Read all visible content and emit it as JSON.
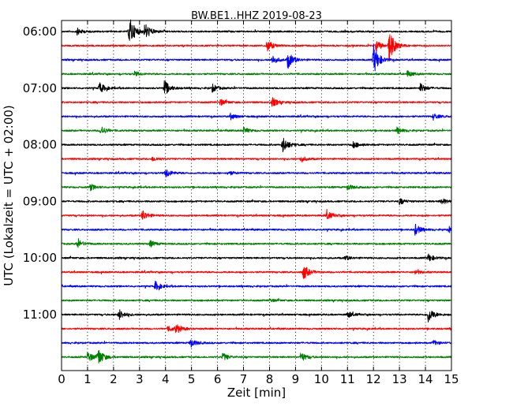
{
  "chart_data": {
    "type": "line",
    "title": "BW.BE1..HHZ 2019-08-23",
    "xlabel": "Zeit  [min]",
    "ylabel": "UTC (Lokalzeit = UTC + 02:00)",
    "xlim": [
      0,
      15
    ],
    "x_ticks": [
      "0",
      "1",
      "2",
      "3",
      "4",
      "5",
      "6",
      "7",
      "8",
      "9",
      "10",
      "11",
      "12",
      "13",
      "14",
      "15"
    ],
    "y_ticks": [
      {
        "label": "06:00",
        "row": 0
      },
      {
        "label": "07:00",
        "row": 4
      },
      {
        "label": "08:00",
        "row": 8
      },
      {
        "label": "09:00",
        "row": 12
      },
      {
        "label": "10:00",
        "row": 16
      },
      {
        "label": "11:00",
        "row": 20
      }
    ],
    "grid": {
      "x": true,
      "y": false,
      "style": "dotted"
    },
    "colors": [
      "#000000",
      "#ff0000",
      "#0000ff",
      "#008000"
    ],
    "row_interval_minutes": 15,
    "rows": [
      {
        "start": "06:00",
        "color": "#000000",
        "events": [
          {
            "t": 2.6,
            "amp": 1.0
          },
          {
            "t": 3.2,
            "amp": 0.55
          },
          {
            "t": 0.6,
            "amp": 0.2
          }
        ]
      },
      {
        "start": "06:15",
        "color": "#ff0000",
        "events": [
          {
            "t": 12.6,
            "amp": 1.0
          },
          {
            "t": 7.9,
            "amp": 0.4
          },
          {
            "t": 12.1,
            "amp": 0.35
          }
        ]
      },
      {
        "start": "06:30",
        "color": "#0000ff",
        "events": [
          {
            "t": 12.0,
            "amp": 1.0
          },
          {
            "t": 8.7,
            "amp": 0.55
          },
          {
            "t": 8.1,
            "amp": 0.3
          }
        ]
      },
      {
        "start": "06:45",
        "color": "#008000",
        "events": [
          {
            "t": 13.3,
            "amp": 0.2
          },
          {
            "t": 2.8,
            "amp": 0.15
          }
        ]
      },
      {
        "start": "07:00",
        "color": "#000000",
        "events": [
          {
            "t": 3.95,
            "amp": 0.5
          },
          {
            "t": 1.45,
            "amp": 0.35
          },
          {
            "t": 13.8,
            "amp": 0.3
          },
          {
            "t": 5.8,
            "amp": 0.25
          }
        ]
      },
      {
        "start": "07:15",
        "color": "#ff0000",
        "events": [
          {
            "t": 8.1,
            "amp": 0.3
          },
          {
            "t": 6.1,
            "amp": 0.2
          }
        ]
      },
      {
        "start": "07:30",
        "color": "#0000ff",
        "events": [
          {
            "t": 6.5,
            "amp": 0.2
          },
          {
            "t": 14.3,
            "amp": 0.2
          }
        ]
      },
      {
        "start": "07:45",
        "color": "#008000",
        "events": [
          {
            "t": 1.5,
            "amp": 0.3
          },
          {
            "t": 12.9,
            "amp": 0.2
          },
          {
            "t": 7.0,
            "amp": 0.2
          }
        ]
      },
      {
        "start": "08:00",
        "color": "#000000",
        "events": [
          {
            "t": 8.5,
            "amp": 0.55
          },
          {
            "t": 11.2,
            "amp": 0.25
          }
        ]
      },
      {
        "start": "08:15",
        "color": "#ff0000",
        "events": [
          {
            "t": 9.2,
            "amp": 0.2
          },
          {
            "t": 3.5,
            "amp": 0.15
          }
        ]
      },
      {
        "start": "08:30",
        "color": "#0000ff",
        "events": [
          {
            "t": 4.0,
            "amp": 0.3
          },
          {
            "t": 6.4,
            "amp": 0.15
          }
        ]
      },
      {
        "start": "08:45",
        "color": "#008000",
        "events": [
          {
            "t": 11.0,
            "amp": 0.2
          },
          {
            "t": 1.1,
            "amp": 0.2
          }
        ]
      },
      {
        "start": "09:00",
        "color": "#000000",
        "events": [
          {
            "t": 13.0,
            "amp": 0.2
          },
          {
            "t": 14.6,
            "amp": 0.2
          }
        ]
      },
      {
        "start": "09:15",
        "color": "#ff0000",
        "events": [
          {
            "t": 3.1,
            "amp": 0.35
          },
          {
            "t": 10.2,
            "amp": 0.3
          }
        ]
      },
      {
        "start": "09:30",
        "color": "#0000ff",
        "events": [
          {
            "t": 13.6,
            "amp": 0.35
          },
          {
            "t": 14.9,
            "amp": 0.2
          }
        ]
      },
      {
        "start": "09:45",
        "color": "#008000",
        "events": [
          {
            "t": 0.6,
            "amp": 0.3
          },
          {
            "t": 3.4,
            "amp": 0.2
          }
        ]
      },
      {
        "start": "10:00",
        "color": "#000000",
        "events": [
          {
            "t": 14.1,
            "amp": 0.25
          },
          {
            "t": 10.9,
            "amp": 0.15
          }
        ]
      },
      {
        "start": "10:15",
        "color": "#ff0000",
        "events": [
          {
            "t": 9.3,
            "amp": 0.5
          },
          {
            "t": 13.6,
            "amp": 0.15
          }
        ]
      },
      {
        "start": "10:30",
        "color": "#0000ff",
        "events": [
          {
            "t": 3.6,
            "amp": 0.3
          }
        ]
      },
      {
        "start": "10:45",
        "color": "#008000",
        "events": [
          {
            "t": 8.0,
            "amp": 0.1
          }
        ]
      },
      {
        "start": "11:00",
        "color": "#000000",
        "events": [
          {
            "t": 14.1,
            "amp": 0.5
          },
          {
            "t": 2.2,
            "amp": 0.35
          },
          {
            "t": 11.0,
            "amp": 0.2
          }
        ]
      },
      {
        "start": "11:15",
        "color": "#ff0000",
        "events": [
          {
            "t": 4.4,
            "amp": 0.3
          },
          {
            "t": 4.1,
            "amp": 0.2
          }
        ]
      },
      {
        "start": "11:30",
        "color": "#0000ff",
        "events": [
          {
            "t": 4.95,
            "amp": 0.3
          },
          {
            "t": 14.3,
            "amp": 0.15
          }
        ]
      },
      {
        "start": "11:45",
        "color": "#008000",
        "events": [
          {
            "t": 1.4,
            "amp": 0.55
          },
          {
            "t": 1.0,
            "amp": 0.35
          },
          {
            "t": 9.2,
            "amp": 0.3
          },
          {
            "t": 6.2,
            "amp": 0.25
          }
        ]
      }
    ]
  }
}
